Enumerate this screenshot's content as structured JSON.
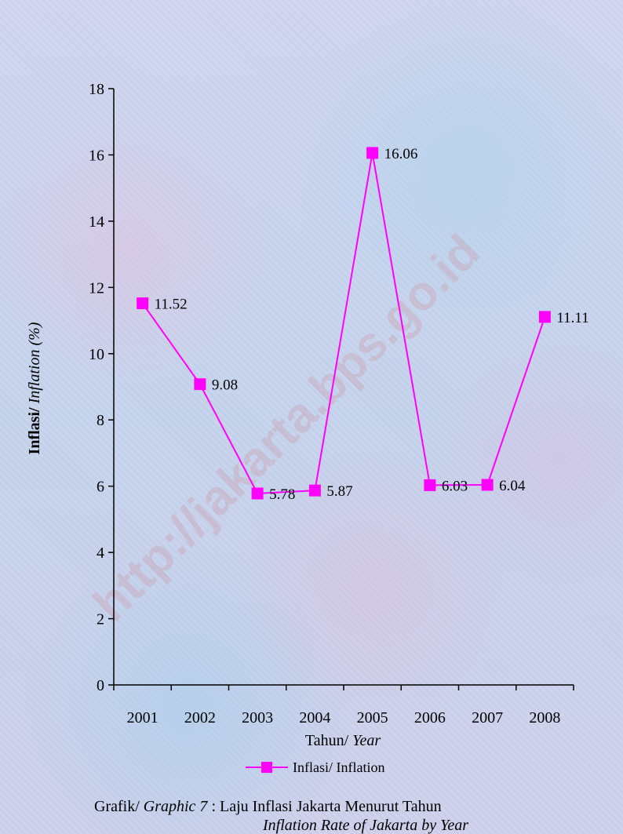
{
  "chart_data": {
    "type": "line",
    "categories": [
      "2001",
      "2002",
      "2003",
      "2004",
      "2005",
      "2006",
      "2007",
      "2008"
    ],
    "series": [
      {
        "name": "Inflasi/ Inflation",
        "values": [
          11.52,
          9.08,
          5.78,
          5.87,
          16.06,
          6.03,
          6.04,
          11.11
        ],
        "color": "#ff00ff"
      }
    ],
    "data_labels": [
      "11.52",
      "9.08",
      "5.78",
      "5.87",
      "16.06",
      "6.03",
      "6.04",
      "11.11"
    ],
    "ylim": [
      0,
      18
    ],
    "y_ticks": [
      "0",
      "2",
      "4",
      "6",
      "8",
      "10",
      "12",
      "14",
      "16",
      "18"
    ],
    "ylabel": {
      "normal": "Inflasi/",
      "italic": "Inflation (%)"
    },
    "xlabel": {
      "normal": "Tahun/",
      "italic": "Year"
    },
    "grid": false,
    "legend": {
      "position": "bottom",
      "label": "Inflasi/ Inflation"
    }
  },
  "caption": {
    "prefix": "Grafik/",
    "prefix_italic": "Graphic 7",
    "title": " : Laju Inflasi Jakarta Menurut Tahun",
    "subtitle_italic": "Inflation Rate of Jakarta by Year"
  },
  "watermark": "http://jakarta.bps.go.id"
}
